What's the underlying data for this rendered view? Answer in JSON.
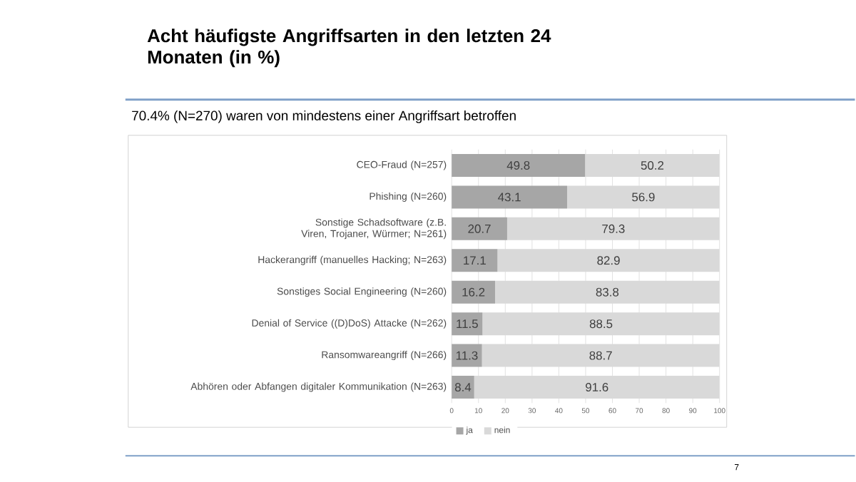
{
  "chart_data": {
    "type": "bar",
    "orientation": "horizontal",
    "stacked": true,
    "title": "Acht häufigste Angriffsarten in den letzten 24 Monaten (in %)",
    "subtitle": "70.4% (N=270) waren von mindestens einer Angriffsart betroffen",
    "categories": [
      "CEO-Fraud (N=257)",
      "Phishing (N=260)",
      "Sonstige Schadsoftware (z.B. Viren, Trojaner, Würmer; N=261)",
      "Hackerangriff (manuelles Hacking; N=263)",
      "Sonstiges Social Engineering (N=260)",
      "Denial of Service ((D)DoS) Attacke (N=262)",
      "Ransomwareangriff (N=266)",
      "Abhören oder Abfangen digitaler Kommunikation (N=263)"
    ],
    "series": [
      {
        "name": "ja",
        "color": "#a6a6a6",
        "values": [
          49.8,
          43.1,
          20.7,
          17.1,
          16.2,
          11.5,
          11.3,
          8.4
        ]
      },
      {
        "name": "nein",
        "color": "#d9d9d9",
        "values": [
          50.2,
          56.9,
          79.3,
          82.9,
          83.8,
          88.5,
          88.7,
          91.6
        ]
      }
    ],
    "xlim": [
      0,
      100
    ],
    "xticks": [
      0,
      10,
      20,
      30,
      40,
      50,
      60,
      70,
      80,
      90,
      100
    ],
    "grid": "x",
    "legend": "bottom",
    "data_labels": true,
    "annotations": [
      "7"
    ]
  }
}
